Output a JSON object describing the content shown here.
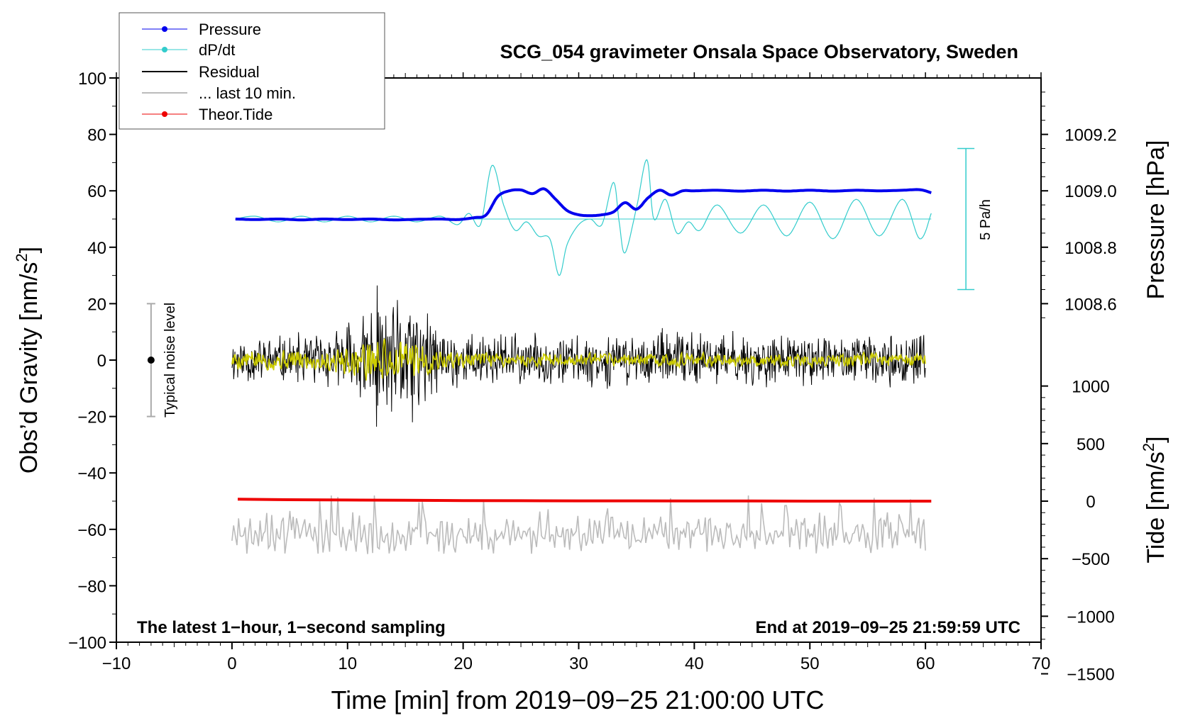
{
  "chart_data": {
    "type": "line",
    "title": "SCG_054 gravimeter Onsala Space Observatory, Sweden",
    "xlabel": "Time [min] from 2019−09−25 21:00:00 UTC",
    "ylabel_left_main": "Obs’d Gravity [nm/s",
    "ylabel_left_sup": "2",
    "ylabel_left_end": "]",
    "ylabel_right_pressure": "Pressure [hPa]",
    "ylabel_right_tide_main": "Tide [nm/s",
    "ylabel_right_tide_sup": "2",
    "ylabel_right_tide_end": "]",
    "xlim": [
      -10,
      70
    ],
    "ylim": [
      -100,
      100
    ],
    "x_ticks": [
      "−10",
      "0",
      "10",
      "20",
      "30",
      "40",
      "50",
      "60",
      "70"
    ],
    "y_ticks": [
      "−100",
      "−80",
      "−60",
      "−40",
      "−20",
      "0",
      "20",
      "40",
      "60",
      "80",
      "100"
    ],
    "pressure_ticks": [
      "1008.6",
      "1008.8",
      "1009.0",
      "1009.2"
    ],
    "pressure_tick_values": [
      1008.6,
      1008.8,
      1009.0,
      1009.2
    ],
    "tide_ticks": [
      "−1500",
      "−1000",
      "−500",
      "0",
      "500",
      "1000"
    ],
    "tide_tick_values": [
      -1500,
      -1000,
      -500,
      0,
      500,
      1000
    ],
    "pressure_mapping": {
      "hpa_ref": 1009.0,
      "gravity_ref": 60,
      "gravity_per_hpa": 100
    },
    "tide_mapping": {
      "tide_ref": 0,
      "gravity_ref": -50,
      "gravity_per_unit": 0.0408
    },
    "legend": [
      "Pressure",
      "dP/dt",
      "Residual",
      "... last 10 min.",
      "Theor.Tide"
    ],
    "legend_position": "top-left",
    "colors": {
      "pressure": "#0000ee",
      "dpdt": "#33cccc",
      "residual": "#000000",
      "last10": "#bbbbbb",
      "tide": "#ee0000",
      "smoothed": "#cccc00",
      "noise_bar": "#aaaaaa"
    },
    "annotations": {
      "scale_bar_label": "5 Pa/h",
      "noise_label": "Typical noise level",
      "footer_left": "The latest 1−hour, 1−second sampling",
      "footer_right": "End at 2019−09−25 21:59:59 UTC"
    },
    "dpdt_scale_bar": {
      "x": 63.5,
      "y_top": 75,
      "y_bottom": 25
    },
    "noise_bar": {
      "x": -7,
      "y_top": 20,
      "y_bottom": -20,
      "marker_y": 0
    },
    "series": [
      {
        "name": "Pressure",
        "x": [
          0.3,
          2,
          4,
          6,
          8,
          10,
          12,
          14,
          16,
          18,
          19.5,
          21,
          22,
          23,
          24,
          25,
          26,
          27,
          28,
          29,
          30,
          31,
          32,
          33,
          34,
          35,
          36,
          37,
          38,
          39,
          40,
          42,
          44,
          46,
          48,
          50,
          52,
          54,
          56,
          58,
          59.5,
          60.5
        ],
        "y": [
          50,
          49.8,
          50,
          49.7,
          50,
          49.8,
          50,
          49.7,
          49.9,
          50,
          49.8,
          50.5,
          51.5,
          58,
          60,
          60.3,
          59,
          60.7,
          57,
          53,
          51.5,
          51.2,
          51.5,
          52.5,
          55.8,
          53.5,
          57.5,
          60.2,
          58.5,
          60,
          60,
          60.2,
          59.9,
          60.2,
          59.9,
          60.2,
          59.9,
          60.2,
          60,
          60.2,
          60.4,
          59.3
        ]
      },
      {
        "name": "dP/dt",
        "baseline": 50,
        "x": [
          0.3,
          2,
          4,
          6,
          8,
          10,
          12,
          14,
          16,
          18,
          19.5,
          20.5,
          21.5,
          22.5,
          23.5,
          24.5,
          25.5,
          26.5,
          27.5,
          28.3,
          29,
          30,
          31,
          32,
          33,
          33.5,
          34,
          35,
          35.9,
          36.5,
          37.5,
          38.5,
          39.5,
          40.5,
          42,
          44,
          46,
          48,
          50,
          52,
          54,
          56,
          58,
          59.5,
          60.5
        ],
        "y": [
          50,
          51,
          49,
          51,
          49,
          51,
          49,
          51,
          49,
          51,
          48,
          52,
          48,
          69,
          55,
          46,
          49,
          44,
          43,
          30,
          41,
          48,
          50,
          48,
          63,
          49,
          38,
          54,
          71,
          50,
          57,
          45,
          49,
          46,
          55,
          45,
          55,
          44,
          56,
          43,
          57,
          44,
          57,
          43,
          52
        ]
      },
      {
        "name": "Residual",
        "x_start": 0,
        "x_end": 60,
        "points": 1200,
        "seed": 11,
        "env_x": [
          0,
          5,
          9,
          11,
          12.5,
          14,
          15.5,
          17,
          19,
          22,
          30,
          40,
          50,
          60
        ],
        "env_amp": [
          10,
          10,
          12,
          19,
          28,
          22,
          30,
          18,
          12,
          11,
          10,
          12,
          10,
          10
        ],
        "min": -28,
        "max": 30
      },
      {
        "name": "Smoothed residual",
        "x_start": 0,
        "x_end": 60,
        "points": 900,
        "seed": 5,
        "env_x": [
          0,
          6,
          10,
          12,
          16,
          18,
          22,
          60
        ],
        "env_amp": [
          3,
          3,
          4,
          7,
          6,
          3,
          2,
          2
        ]
      },
      {
        "name": "... last 10 min.",
        "x_start": 0,
        "x_end": 60,
        "points": 420,
        "seed": 23,
        "baseline": -62,
        "min": -71,
        "max": -48
      },
      {
        "name": "Theor.Tide",
        "x": [
          0.5,
          5,
          10,
          15,
          20,
          25,
          30,
          35,
          40,
          45,
          50,
          55,
          60.5
        ],
        "y": [
          -49.3,
          -49.5,
          -49.6,
          -49.7,
          -49.8,
          -49.85,
          -49.9,
          -49.9,
          -49.95,
          -49.95,
          -50,
          -50,
          -50
        ]
      }
    ]
  }
}
